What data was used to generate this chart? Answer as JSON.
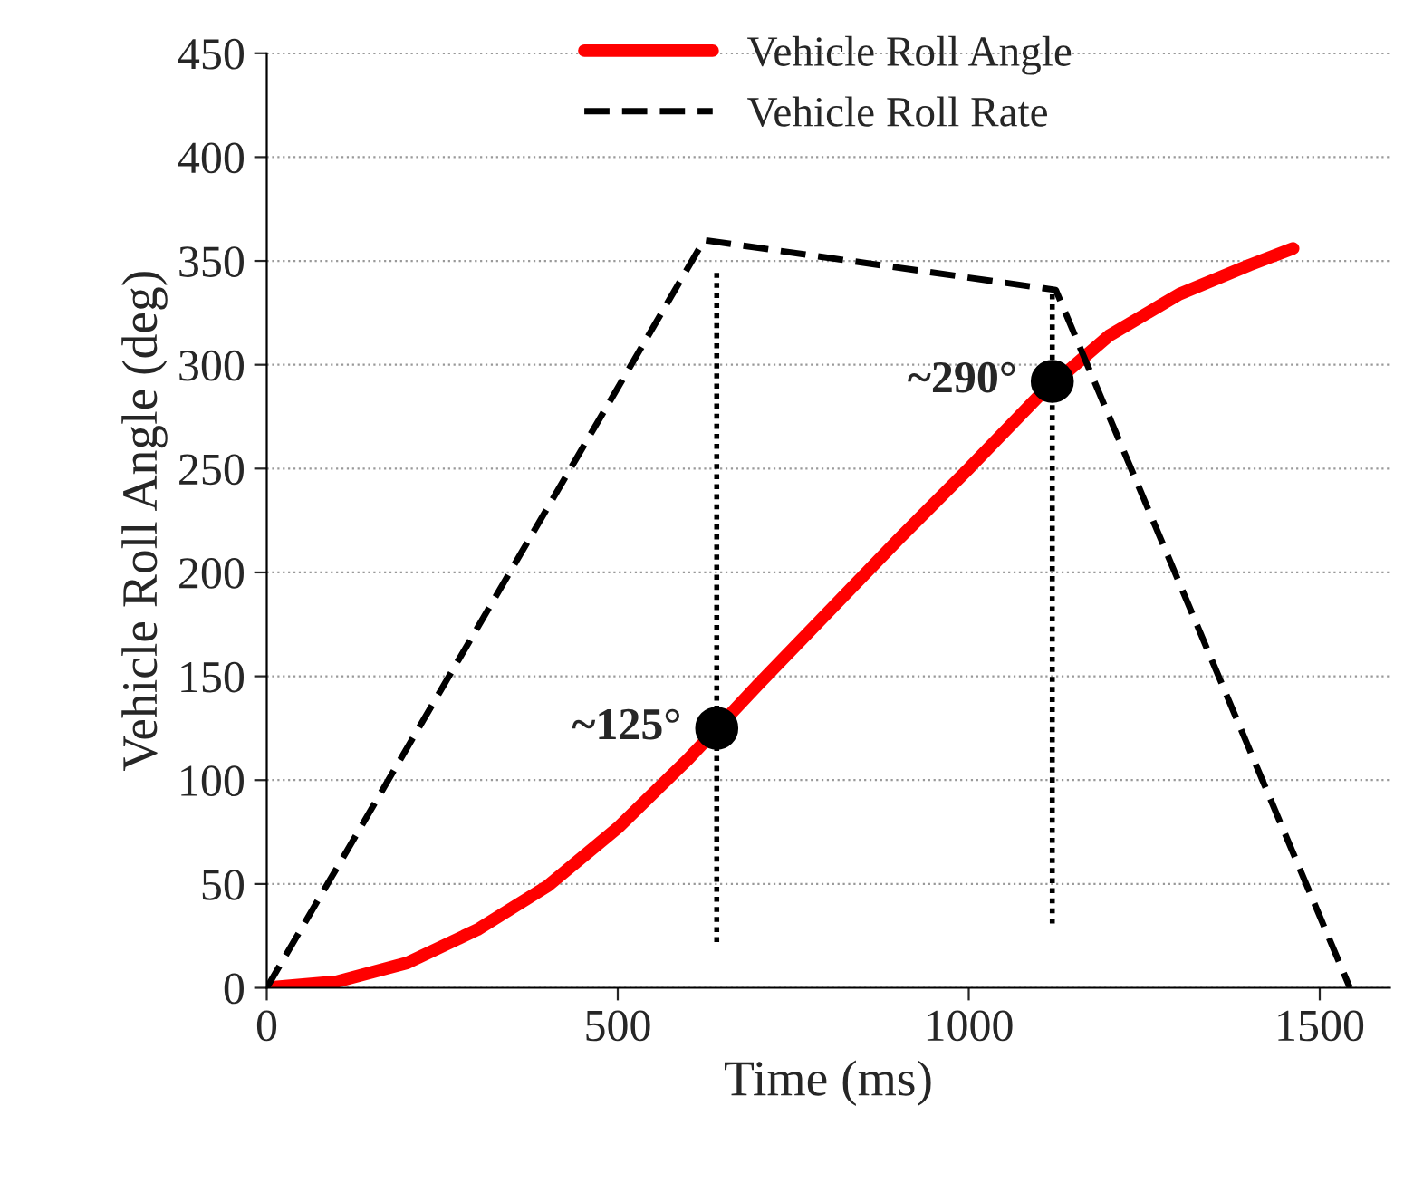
{
  "chart_data": {
    "type": "line",
    "xlabel": "Time (ms)",
    "ylabel": "Vehicle Roll Angle (deg)",
    "xlim": [
      0,
      1600
    ],
    "xticks": [
      0,
      500,
      1000,
      1500
    ],
    "ylim": [
      0,
      450
    ],
    "yticks": [
      0,
      50,
      100,
      150,
      200,
      250,
      300,
      350,
      400,
      450
    ],
    "grid": "y",
    "legend": "top",
    "series": [
      {
        "name": "Vehicle Roll Angle",
        "type": "line",
        "color": "#ff0000",
        "line_style": "solid",
        "x": [
          0,
          100,
          200,
          300,
          400,
          500,
          600,
          700,
          800,
          900,
          1000,
          1100,
          1200,
          1300,
          1400,
          1462
        ],
        "values": [
          0,
          3,
          12,
          28,
          49,
          77,
          110,
          146,
          181,
          216,
          250,
          285,
          314,
          334,
          348,
          356
        ]
      },
      {
        "name": "Vehicle Roll Rate",
        "type": "line",
        "color": "#000000",
        "line_style": "dashed",
        "x": [
          0,
          623,
          1124,
          1543
        ],
        "values": [
          0,
          360,
          336,
          0
        ]
      },
      {
        "type": "line",
        "color": "#000000",
        "line_style": "dotted",
        "x": [
          641,
          641
        ],
        "values": [
          22,
          345
        ]
      },
      {
        "type": "line",
        "color": "#000000",
        "line_style": "dotted",
        "x": [
          1119,
          1119
        ],
        "values": [
          31,
          336
        ]
      },
      {
        "type": "scatter",
        "color": "#000000",
        "marker": "circle",
        "x": [
          641,
          1119
        ],
        "values": [
          125,
          292
        ]
      }
    ],
    "annotations": [
      {
        "text": "~125°",
        "x": 641,
        "y": 125
      },
      {
        "text": "~290°",
        "x": 1119,
        "y": 292
      }
    ]
  }
}
